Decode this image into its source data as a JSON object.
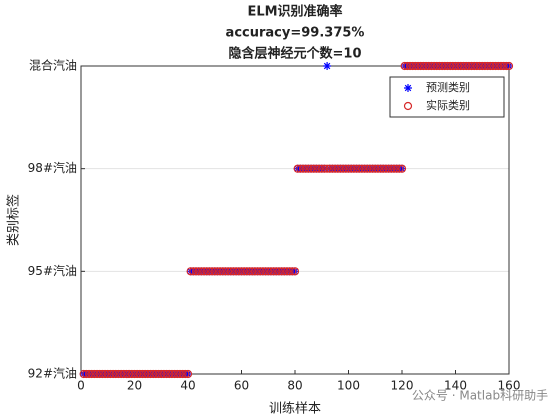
{
  "chart_data": {
    "type": "scatter",
    "title": [
      "ELM识别准确率",
      "accuracy=99.375%",
      "隐含层神经元个数=10"
    ],
    "x_label": "训练样本",
    "y_label": "类别标签",
    "xlim": [
      0,
      160
    ],
    "xticks": [
      0,
      20,
      40,
      60,
      80,
      100,
      120,
      140,
      160
    ],
    "ylim": [
      1,
      4
    ],
    "yticks": [
      {
        "value": 1,
        "label": "92#汽油"
      },
      {
        "value": 2,
        "label": "95#汽油"
      },
      {
        "value": 3,
        "label": "98#汽油"
      },
      {
        "value": 4,
        "label": "混合汽油"
      }
    ],
    "grid": true,
    "legend": "upper right",
    "x": [
      1,
      2,
      3,
      4,
      5,
      6,
      7,
      8,
      9,
      10,
      11,
      12,
      13,
      14,
      15,
      16,
      17,
      18,
      19,
      20,
      21,
      22,
      23,
      24,
      25,
      26,
      27,
      28,
      29,
      30,
      31,
      32,
      33,
      34,
      35,
      36,
      37,
      38,
      39,
      40,
      41,
      42,
      43,
      44,
      45,
      46,
      47,
      48,
      49,
      50,
      51,
      52,
      53,
      54,
      55,
      56,
      57,
      58,
      59,
      60,
      61,
      62,
      63,
      64,
      65,
      66,
      67,
      68,
      69,
      70,
      71,
      72,
      73,
      74,
      75,
      76,
      77,
      78,
      79,
      80,
      81,
      82,
      83,
      84,
      85,
      86,
      87,
      88,
      89,
      90,
      91,
      92,
      93,
      94,
      95,
      96,
      97,
      98,
      99,
      100,
      101,
      102,
      103,
      104,
      105,
      106,
      107,
      108,
      109,
      110,
      111,
      112,
      113,
      114,
      115,
      116,
      117,
      118,
      119,
      120,
      121,
      122,
      123,
      124,
      125,
      126,
      127,
      128,
      129,
      130,
      131,
      132,
      133,
      134,
      135,
      136,
      137,
      138,
      139,
      140,
      141,
      142,
      143,
      144,
      145,
      146,
      147,
      148,
      149,
      150,
      151,
      152,
      153,
      154,
      155,
      156,
      157,
      158,
      159,
      160
    ],
    "series": [
      {
        "name": "预测类别",
        "color": "#0000ff",
        "marker": "asterisk",
        "values": [
          1,
          1,
          1,
          1,
          1,
          1,
          1,
          1,
          1,
          1,
          1,
          1,
          1,
          1,
          1,
          1,
          1,
          1,
          1,
          1,
          1,
          1,
          1,
          1,
          1,
          1,
          1,
          1,
          1,
          1,
          1,
          1,
          1,
          1,
          1,
          1,
          1,
          1,
          1,
          1,
          2,
          2,
          2,
          2,
          2,
          2,
          2,
          2,
          2,
          2,
          2,
          2,
          2,
          2,
          2,
          2,
          2,
          2,
          2,
          2,
          2,
          2,
          2,
          2,
          2,
          2,
          2,
          2,
          2,
          2,
          2,
          2,
          2,
          2,
          2,
          2,
          2,
          2,
          2,
          2,
          3,
          3,
          3,
          3,
          3,
          3,
          3,
          3,
          3,
          3,
          3,
          4,
          3,
          3,
          3,
          3,
          3,
          3,
          3,
          3,
          3,
          3,
          3,
          3,
          3,
          3,
          3,
          3,
          3,
          3,
          3,
          3,
          3,
          3,
          3,
          3,
          3,
          3,
          3,
          3,
          4,
          4,
          4,
          4,
          4,
          4,
          4,
          4,
          4,
          4,
          4,
          4,
          4,
          4,
          4,
          4,
          4,
          4,
          4,
          4,
          4,
          4,
          4,
          4,
          4,
          4,
          4,
          4,
          4,
          4,
          4,
          4,
          4,
          4,
          4,
          4,
          4,
          4,
          4,
          4
        ]
      },
      {
        "name": "实际类别",
        "color": "#d62728",
        "marker": "circle",
        "values": [
          1,
          1,
          1,
          1,
          1,
          1,
          1,
          1,
          1,
          1,
          1,
          1,
          1,
          1,
          1,
          1,
          1,
          1,
          1,
          1,
          1,
          1,
          1,
          1,
          1,
          1,
          1,
          1,
          1,
          1,
          1,
          1,
          1,
          1,
          1,
          1,
          1,
          1,
          1,
          1,
          2,
          2,
          2,
          2,
          2,
          2,
          2,
          2,
          2,
          2,
          2,
          2,
          2,
          2,
          2,
          2,
          2,
          2,
          2,
          2,
          2,
          2,
          2,
          2,
          2,
          2,
          2,
          2,
          2,
          2,
          2,
          2,
          2,
          2,
          2,
          2,
          2,
          2,
          2,
          2,
          3,
          3,
          3,
          3,
          3,
          3,
          3,
          3,
          3,
          3,
          3,
          3,
          3,
          3,
          3,
          3,
          3,
          3,
          3,
          3,
          3,
          3,
          3,
          3,
          3,
          3,
          3,
          3,
          3,
          3,
          3,
          3,
          3,
          3,
          3,
          3,
          3,
          3,
          3,
          3,
          4,
          4,
          4,
          4,
          4,
          4,
          4,
          4,
          4,
          4,
          4,
          4,
          4,
          4,
          4,
          4,
          4,
          4,
          4,
          4,
          4,
          4,
          4,
          4,
          4,
          4,
          4,
          4,
          4,
          4,
          4,
          4,
          4,
          4,
          4,
          4,
          4,
          4,
          4,
          4
        ]
      }
    ],
    "watermark": "公众号 · Matlab科研助手"
  }
}
